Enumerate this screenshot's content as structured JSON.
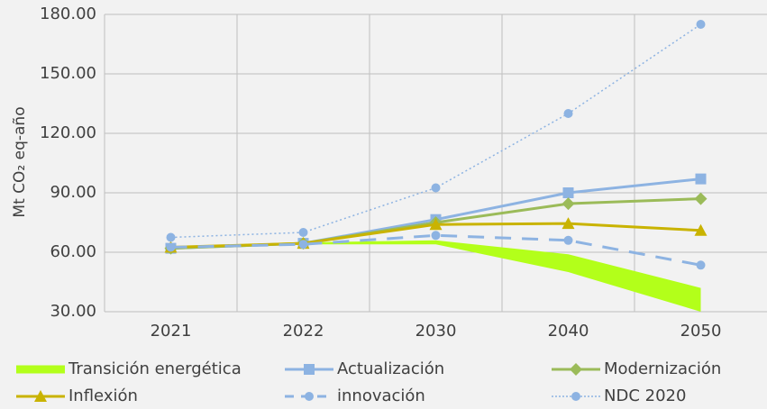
{
  "chart_data": {
    "type": "line",
    "y_label": "Mt CO₂ eq-año",
    "categories": [
      "2021",
      "2022",
      "2030",
      "2040",
      "2050"
    ],
    "ylim": [
      30,
      180
    ],
    "yticks": [
      {
        "value": 30,
        "label": "30.00"
      },
      {
        "value": 60,
        "label": "60.00"
      },
      {
        "value": 90,
        "label": "90.00"
      },
      {
        "value": 120,
        "label": "120.00"
      },
      {
        "value": 150,
        "label": "150.00"
      },
      {
        "value": 180,
        "label": "180.00"
      }
    ],
    "grid": true,
    "series": [
      {
        "name": "Transición energética",
        "color": "#b3ff1a",
        "kind": "band",
        "values": [
          63,
          65,
          66,
          59,
          42
        ],
        "low": [
          62,
          64,
          64,
          50,
          30
        ]
      },
      {
        "name": "Actualización",
        "color": "#8db3e2",
        "marker": "square",
        "dash": "solid",
        "values": [
          62,
          64.5,
          76.5,
          90,
          97
        ]
      },
      {
        "name": "Modernización",
        "color": "#9bbb59",
        "marker": "diamond",
        "dash": "solid",
        "values": [
          62,
          64.5,
          75,
          84.5,
          87
        ]
      },
      {
        "name": "Inflexión",
        "color": "#c9b300",
        "marker": "triangle",
        "dash": "solid",
        "values": [
          62.5,
          64.5,
          74,
          74.5,
          71
        ]
      },
      {
        "name": "innovación",
        "color": "#8db3e2",
        "marker": "circle",
        "dash": "dashed",
        "values": [
          62.5,
          64,
          68.5,
          66,
          53.5
        ]
      },
      {
        "name": "NDC 2020",
        "color": "#8db3e2",
        "marker": "circle",
        "dash": "dotted",
        "values": [
          67.5,
          70,
          92.5,
          130,
          175
        ]
      }
    ]
  }
}
